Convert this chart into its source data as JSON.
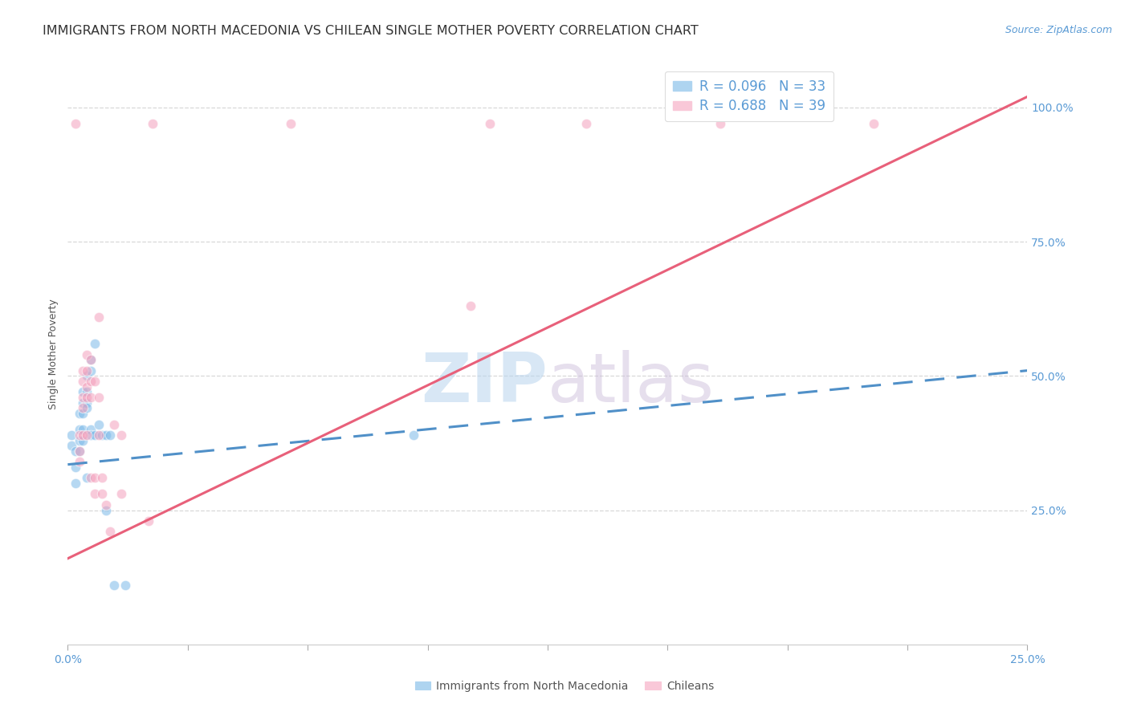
{
  "title": "IMMIGRANTS FROM NORTH MACEDONIA VS CHILEAN SINGLE MOTHER POVERTY CORRELATION CHART",
  "source": "Source: ZipAtlas.com",
  "ylabel": "Single Mother Poverty",
  "ytick_labels": [
    "25.0%",
    "50.0%",
    "75.0%",
    "100.0%"
  ],
  "ytick_vals": [
    0.25,
    0.5,
    0.75,
    1.0
  ],
  "xlim": [
    0.0,
    0.25
  ],
  "ylim": [
    0.0,
    1.08
  ],
  "legend1_label": "R = 0.096   N = 33",
  "legend2_label": "R = 0.688   N = 39",
  "legend_color1": "#aed4f0",
  "legend_color2": "#f9c8d8",
  "watermark": "ZIPatlas",
  "blue_color": "#7ab8e8",
  "pink_color": "#f4a0bc",
  "blue_line_color": "#5090c8",
  "pink_line_color": "#e8607a",
  "blue_scatter": [
    [
      0.001,
      0.39
    ],
    [
      0.001,
      0.37
    ],
    [
      0.002,
      0.36
    ],
    [
      0.002,
      0.33
    ],
    [
      0.003,
      0.43
    ],
    [
      0.003,
      0.4
    ],
    [
      0.003,
      0.38
    ],
    [
      0.003,
      0.36
    ],
    [
      0.004,
      0.47
    ],
    [
      0.004,
      0.45
    ],
    [
      0.004,
      0.43
    ],
    [
      0.004,
      0.4
    ],
    [
      0.004,
      0.38
    ],
    [
      0.005,
      0.5
    ],
    [
      0.005,
      0.47
    ],
    [
      0.005,
      0.45
    ],
    [
      0.005,
      0.44
    ],
    [
      0.005,
      0.31
    ],
    [
      0.006,
      0.53
    ],
    [
      0.006,
      0.51
    ],
    [
      0.006,
      0.4
    ],
    [
      0.006,
      0.39
    ],
    [
      0.007,
      0.56
    ],
    [
      0.007,
      0.39
    ],
    [
      0.008,
      0.41
    ],
    [
      0.009,
      0.39
    ],
    [
      0.01,
      0.39
    ],
    [
      0.01,
      0.25
    ],
    [
      0.011,
      0.39
    ],
    [
      0.012,
      0.11
    ],
    [
      0.015,
      0.11
    ],
    [
      0.09,
      0.39
    ],
    [
      0.002,
      0.3
    ]
  ],
  "pink_scatter": [
    [
      0.002,
      0.97
    ],
    [
      0.003,
      0.39
    ],
    [
      0.003,
      0.36
    ],
    [
      0.003,
      0.34
    ],
    [
      0.004,
      0.51
    ],
    [
      0.004,
      0.49
    ],
    [
      0.004,
      0.46
    ],
    [
      0.004,
      0.44
    ],
    [
      0.004,
      0.39
    ],
    [
      0.005,
      0.54
    ],
    [
      0.005,
      0.51
    ],
    [
      0.005,
      0.48
    ],
    [
      0.005,
      0.46
    ],
    [
      0.005,
      0.39
    ],
    [
      0.006,
      0.53
    ],
    [
      0.006,
      0.49
    ],
    [
      0.006,
      0.46
    ],
    [
      0.006,
      0.31
    ],
    [
      0.007,
      0.49
    ],
    [
      0.007,
      0.31
    ],
    [
      0.007,
      0.28
    ],
    [
      0.008,
      0.61
    ],
    [
      0.008,
      0.46
    ],
    [
      0.008,
      0.39
    ],
    [
      0.009,
      0.31
    ],
    [
      0.009,
      0.28
    ],
    [
      0.01,
      0.26
    ],
    [
      0.011,
      0.21
    ],
    [
      0.012,
      0.41
    ],
    [
      0.014,
      0.39
    ],
    [
      0.014,
      0.28
    ],
    [
      0.021,
      0.23
    ],
    [
      0.022,
      0.97
    ],
    [
      0.058,
      0.97
    ],
    [
      0.105,
      0.63
    ],
    [
      0.11,
      0.97
    ],
    [
      0.135,
      0.97
    ],
    [
      0.17,
      0.97
    ],
    [
      0.21,
      0.97
    ]
  ],
  "blue_trend_x": [
    0.0,
    0.25
  ],
  "blue_trend_y": [
    0.335,
    0.51
  ],
  "pink_trend_x": [
    0.0,
    0.25
  ],
  "pink_trend_y": [
    0.16,
    1.02
  ],
  "grid_color": "#d8d8d8",
  "title_fontsize": 11.5,
  "axis_label_fontsize": 9,
  "tick_fontsize": 10,
  "source_fontsize": 9
}
